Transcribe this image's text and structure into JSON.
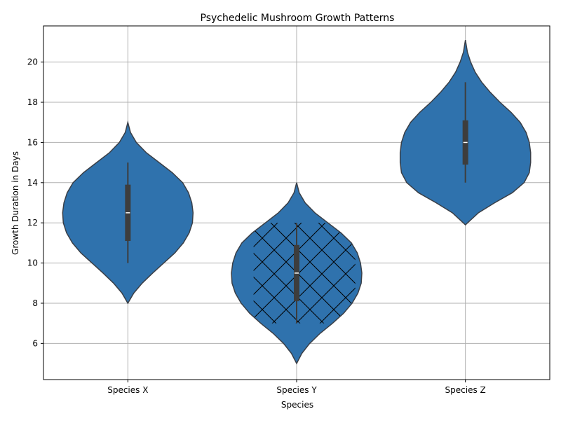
{
  "chart_data": {
    "type": "violin",
    "title": "Psychedelic Mushroom Growth Patterns",
    "xlabel": "Species",
    "ylabel": "Growth Duration in Days",
    "categories": [
      "Species X",
      "Species Y",
      "Species Z"
    ],
    "ylim": [
      4.2,
      21.8
    ],
    "yticks": [
      6,
      8,
      10,
      12,
      14,
      16,
      18,
      20
    ],
    "grid": true,
    "colors": {
      "violin": "#2f72ad",
      "edge": "#3a3f47",
      "box": "#3d3d3d",
      "median": "#ffffff",
      "grid": "#b0b0b0"
    },
    "series": [
      {
        "category": "Species X",
        "min": 10,
        "q1": 11.1,
        "median": 12.5,
        "q3": 13.9,
        "max": 15,
        "kde_range": [
          8,
          17
        ],
        "density": [
          [
            8,
            0.0
          ],
          [
            8.5,
            0.09
          ],
          [
            9,
            0.22
          ],
          [
            9.5,
            0.38
          ],
          [
            10,
            0.55
          ],
          [
            10.5,
            0.72
          ],
          [
            11,
            0.85
          ],
          [
            11.5,
            0.94
          ],
          [
            12,
            0.99
          ],
          [
            12.5,
            1.0
          ],
          [
            13,
            0.98
          ],
          [
            13.5,
            0.93
          ],
          [
            14,
            0.84
          ],
          [
            14.5,
            0.68
          ],
          [
            15,
            0.48
          ],
          [
            15.5,
            0.28
          ],
          [
            16,
            0.13
          ],
          [
            16.5,
            0.04
          ],
          [
            17,
            0.0
          ]
        ]
      },
      {
        "category": "Species Y",
        "min": 7,
        "q1": 8.1,
        "median": 9.5,
        "q3": 10.9,
        "max": 12,
        "kde_range": [
          5,
          14
        ],
        "hatch": "x",
        "density": [
          [
            5,
            0.0
          ],
          [
            5.5,
            0.08
          ],
          [
            6,
            0.2
          ],
          [
            6.5,
            0.36
          ],
          [
            7,
            0.55
          ],
          [
            7.5,
            0.72
          ],
          [
            8,
            0.85
          ],
          [
            8.5,
            0.94
          ],
          [
            9,
            0.99
          ],
          [
            9.5,
            1.0
          ],
          [
            10,
            0.98
          ],
          [
            10.5,
            0.93
          ],
          [
            11,
            0.84
          ],
          [
            11.5,
            0.68
          ],
          [
            12,
            0.48
          ],
          [
            12.5,
            0.28
          ],
          [
            13,
            0.13
          ],
          [
            13.5,
            0.04
          ],
          [
            14,
            0.0
          ]
        ]
      },
      {
        "category": "Species Z",
        "min": 14,
        "q1": 14.9,
        "median": 16,
        "q3": 17.1,
        "max": 19,
        "kde_range": [
          11.9,
          21.1
        ],
        "density": [
          [
            11.9,
            0.0
          ],
          [
            12.5,
            0.2
          ],
          [
            13,
            0.45
          ],
          [
            13.5,
            0.72
          ],
          [
            14,
            0.9
          ],
          [
            14.5,
            0.98
          ],
          [
            15,
            1.0
          ],
          [
            15.5,
            1.0
          ],
          [
            16,
            0.98
          ],
          [
            16.5,
            0.93
          ],
          [
            17,
            0.84
          ],
          [
            17.5,
            0.7
          ],
          [
            18,
            0.53
          ],
          [
            18.5,
            0.38
          ],
          [
            19,
            0.25
          ],
          [
            19.5,
            0.15
          ],
          [
            20,
            0.08
          ],
          [
            20.5,
            0.03
          ],
          [
            21.1,
            0.0
          ]
        ]
      }
    ]
  }
}
